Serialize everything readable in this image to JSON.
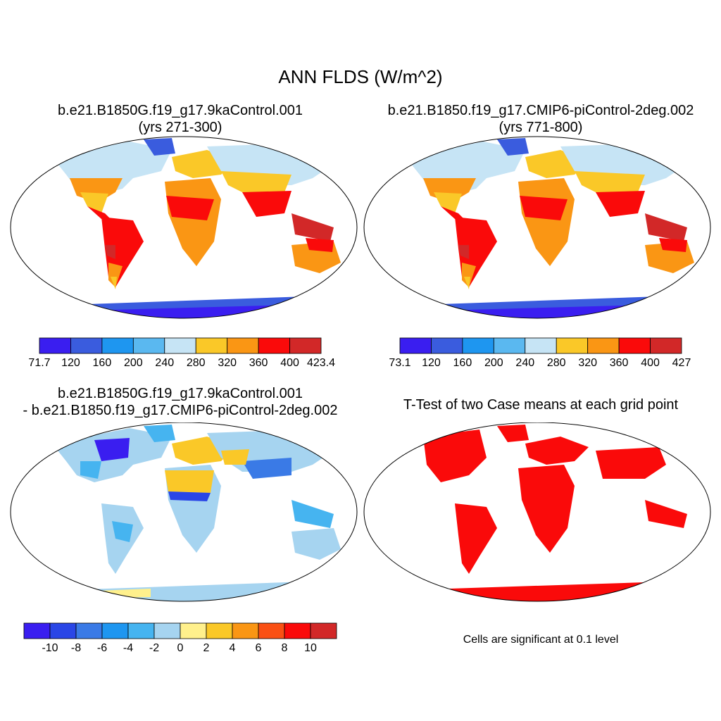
{
  "title": "ANN FLDS (W/m^2)",
  "panels": [
    {
      "id": "p1",
      "title_line1": "b.e21.B1850G.f19_g17.9kaControl.001",
      "title_line2": "(yrs 271-300)"
    },
    {
      "id": "p2",
      "title_line1": "b.e21.B1850.f19_g17.CMIP6-piControl-2deg.002",
      "title_line2": "(yrs 771-800)"
    },
    {
      "id": "p3",
      "title_line1": "b.e21.B1850G.f19_g17.9kaControl.001",
      "title_line2": "- b.e21.B1850.f19_g17.CMIP6-piControl-2deg.002"
    },
    {
      "id": "p4",
      "title_line1": "T-Test of two Case means at each grid point"
    }
  ],
  "significance_note": "Cells are significant at 0.1 level",
  "colorbars": [
    {
      "id": "cb1",
      "labels": [
        "71.7",
        "120",
        "160",
        "200",
        "240",
        "280",
        "320",
        "360",
        "400",
        "423.4"
      ],
      "colors": [
        "#3a1ef0",
        "#3a5cde",
        "#1e96f0",
        "#5ab8f0",
        "#c6e4f5",
        "#fac828",
        "#fa9614",
        "#fa0a0a",
        "#d22828"
      ]
    },
    {
      "id": "cb2",
      "labels": [
        "73.1",
        "120",
        "160",
        "200",
        "240",
        "280",
        "320",
        "360",
        "400",
        "427"
      ],
      "colors": [
        "#3a1ef0",
        "#3a5cde",
        "#1e96f0",
        "#5ab8f0",
        "#c6e4f5",
        "#fac828",
        "#fa9614",
        "#fa0a0a",
        "#d22828"
      ]
    },
    {
      "id": "cb3",
      "labels": [
        "-10",
        "-8",
        "-6",
        "-4",
        "-2",
        "0",
        "2",
        "4",
        "6",
        "8",
        "10"
      ],
      "colors": [
        "#3a1ef0",
        "#2a46e6",
        "#3a7ae6",
        "#1e96f0",
        "#46b4f0",
        "#a6d4f0",
        "#fff08c",
        "#fac828",
        "#fa9614",
        "#fa5014",
        "#fa0a0a",
        "#d22828"
      ]
    }
  ]
}
